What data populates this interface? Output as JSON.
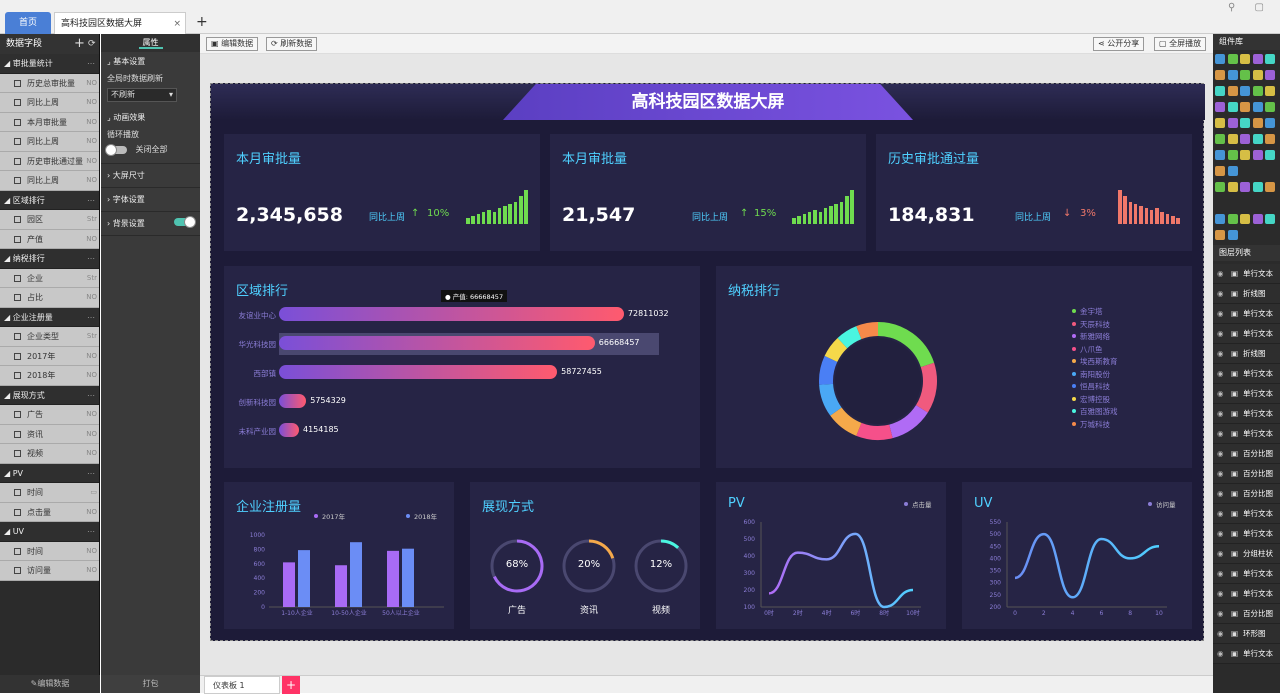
{
  "tabs": {
    "home": "首页",
    "doc": "高科技园区数据大屏",
    "close": "×",
    "add": "+"
  },
  "window_controls": "⚲ ▢",
  "left_panel": {
    "title": "数据字段",
    "footer": "编辑数据",
    "groups": [
      {
        "name": "审批量统计",
        "items": [
          {
            "label": "历史总审批量",
            "type": "NO"
          },
          {
            "label": "同比上周",
            "type": "NO"
          },
          {
            "label": "本月审批量",
            "type": "NO"
          },
          {
            "label": "同比上周",
            "type": "NO"
          },
          {
            "label": "历史审批通过量",
            "type": "NO"
          },
          {
            "label": "同比上周",
            "type": "NO"
          }
        ]
      },
      {
        "name": "区域排行",
        "items": [
          {
            "label": "园区",
            "type": "Str"
          },
          {
            "label": "产值",
            "type": "NO"
          }
        ]
      },
      {
        "name": "纳税排行",
        "items": [
          {
            "label": "企业",
            "type": "Str"
          },
          {
            "label": "占比",
            "type": "NO"
          }
        ]
      },
      {
        "name": "企业注册量",
        "items": [
          {
            "label": "企业类型",
            "type": "Str"
          },
          {
            "label": "2017年",
            "type": "NO"
          },
          {
            "label": "2018年",
            "type": "NO"
          }
        ]
      },
      {
        "name": "展现方式",
        "items": [
          {
            "label": "广告",
            "type": "NO"
          },
          {
            "label": "资讯",
            "type": "NO"
          },
          {
            "label": "视频",
            "type": "NO"
          }
        ]
      },
      {
        "name": "PV",
        "items": [
          {
            "label": "时间",
            "type": "▭"
          },
          {
            "label": "点击量",
            "type": "NO"
          }
        ]
      },
      {
        "name": "UV",
        "items": [
          {
            "label": "时间",
            "type": "NO"
          },
          {
            "label": "访问量",
            "type": "NO"
          }
        ]
      }
    ]
  },
  "prop_panel": {
    "tab": "属性",
    "basic": "基本设置",
    "refresh_label": "全局时数据刷新",
    "refresh_value": "不刷新",
    "anim": "动画效果",
    "loop_label": "循环播放",
    "close_all": "关闭全部",
    "screen_size": "大屏尺寸",
    "font_settings": "字体设置",
    "bg_settings": "背景设置",
    "footer": "打包"
  },
  "toolbar": {
    "edit": "编辑数据",
    "refresh": "刷新数据",
    "share": "公开分享",
    "fullscreen": "全屏播放"
  },
  "bottom": {
    "sheet": "仪表板 1",
    "add": "+"
  },
  "dashboard": {
    "title": "高科技园区数据大屏",
    "kpis": [
      {
        "title": "本月审批量",
        "value": "2,345,658",
        "cmp_label": "同比上周",
        "arrow": "↑",
        "pct": "10%",
        "color": "#6fdc4f",
        "bars": [
          3,
          4,
          5,
          6,
          7,
          6,
          8,
          9,
          10,
          11,
          14,
          17
        ]
      },
      {
        "title": "本月审批量",
        "value": "21,547",
        "cmp_label": "同比上周",
        "arrow": "↑",
        "pct": "15%",
        "color": "#6fdc4f",
        "bars": [
          3,
          4,
          5,
          6,
          7,
          6,
          8,
          9,
          10,
          11,
          14,
          17
        ]
      },
      {
        "title": "历史审批通过量",
        "value": "184,831",
        "cmp_label": "同比上周",
        "arrow": "↓",
        "pct": "3%",
        "color": "#f0786a",
        "bars": [
          17,
          14,
          11,
          10,
          9,
          8,
          7,
          8,
          6,
          5,
          4,
          3
        ]
      }
    ],
    "rank": {
      "title": "区域排行",
      "tooltip": "● 产值: 66668457",
      "items": [
        {
          "name": "友谊业中心",
          "value": "72811032",
          "num": 72811032
        },
        {
          "name": "华光科技园",
          "value": "66668457",
          "num": 66668457
        },
        {
          "name": "西部镇",
          "value": "58727455",
          "num": 58727455
        },
        {
          "name": "创新科技园",
          "value": "5754329",
          "num": 5754329
        },
        {
          "name": "未科产业园",
          "value": "4154185",
          "num": 4154185
        }
      ]
    },
    "tax": {
      "title": "纳税排行",
      "legend": [
        {
          "name": "金宇塔",
          "color": "#6fdc4f"
        },
        {
          "name": "天辰科技",
          "color": "#f05a7e"
        },
        {
          "name": "新雅网络",
          "color": "#b06bf5"
        },
        {
          "name": "八爪鱼",
          "color": "#f5508a"
        },
        {
          "name": "埃西斯教育",
          "color": "#f5a94a"
        },
        {
          "name": "南阳股份",
          "color": "#4aa8f5"
        },
        {
          "name": "恒昌科技",
          "color": "#4a7ff5"
        },
        {
          "name": "宏博控股",
          "color": "#f5d84a"
        },
        {
          "name": "百雅图游戏",
          "color": "#4af5e0"
        },
        {
          "name": "万城科技",
          "color": "#f58a4a"
        }
      ],
      "shares": [
        20,
        14,
        12,
        10,
        9,
        9,
        8,
        6,
        6,
        6
      ]
    },
    "reg": {
      "title": "企业注册量",
      "legend": [
        "2017年",
        "2018年"
      ],
      "categories": [
        "1-10人企业",
        "10-50人企业",
        "50人以上企业"
      ],
      "s2017": [
        620,
        580,
        780
      ],
      "s2018": [
        790,
        900,
        810
      ],
      "yticks": [
        "1000",
        "800",
        "600",
        "400",
        "200",
        "0"
      ]
    },
    "show": {
      "title": "展现方式",
      "items": [
        {
          "label": "广告",
          "pct": "68%",
          "value": 0.68,
          "color": "#a86bf5"
        },
        {
          "label": "资讯",
          "pct": "20%",
          "value": 0.2,
          "color": "#f5a94a"
        },
        {
          "label": "视频",
          "pct": "12%",
          "value": 0.12,
          "color": "#4af5e0"
        }
      ]
    },
    "pv": {
      "title": "PV",
      "legend": "点击量",
      "x": [
        "0时",
        "2时",
        "4时",
        "6时",
        "8时",
        "10时"
      ],
      "yticks": [
        "600",
        "500",
        "400",
        "300",
        "200",
        "100"
      ],
      "values": [
        180,
        420,
        380,
        530,
        100,
        200
      ]
    },
    "uv": {
      "title": "UV",
      "legend": "访问量",
      "x": [
        "0",
        "2",
        "4",
        "6",
        "8",
        "10"
      ],
      "yticks": [
        "550",
        "500",
        "450",
        "400",
        "350",
        "300",
        "250",
        "200"
      ],
      "values": [
        320,
        500,
        240,
        480,
        400,
        450
      ]
    }
  },
  "right_panel": {
    "comp_title": "组件库",
    "layer_title": "图层列表",
    "layers": [
      "单行文本",
      "折线图",
      "单行文本",
      "单行文本",
      "折线图",
      "单行文本",
      "单行文本",
      "单行文本",
      "单行文本",
      "百分比图",
      "百分比图",
      "百分比图",
      "单行文本",
      "单行文本",
      "分组柱状",
      "单行文本",
      "单行文本",
      "百分比图",
      "环形图",
      "单行文本"
    ]
  }
}
